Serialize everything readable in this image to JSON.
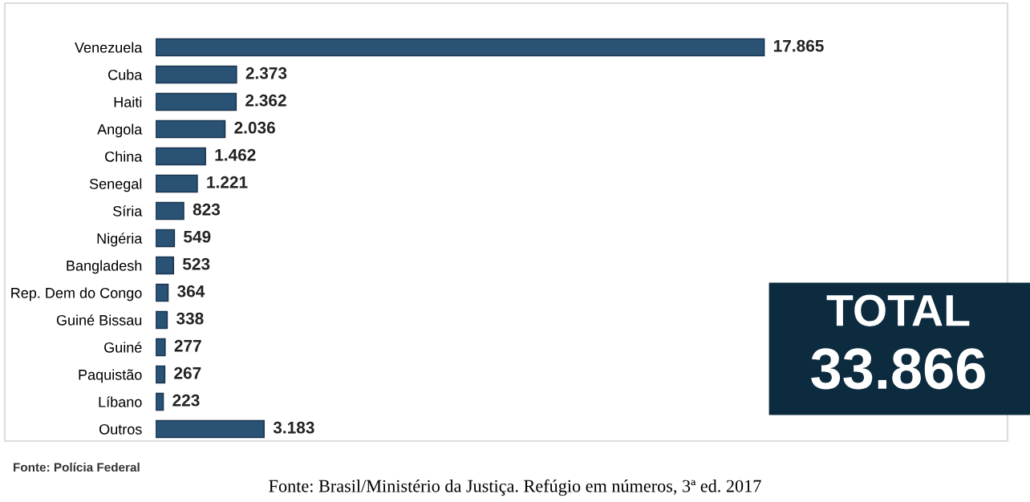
{
  "chart_data": {
    "type": "bar",
    "orientation": "horizontal",
    "categories": [
      "Venezuela",
      "Cuba",
      "Haiti",
      "Angola",
      "China",
      "Senegal",
      "Síria",
      "Nigéria",
      "Bangladesh",
      "Rep. Dem do Congo",
      "Guiné Bissau",
      "Guiné",
      "Paquistão",
      "Líbano",
      "Outros"
    ],
    "values": [
      17865,
      2373,
      2362,
      2036,
      1462,
      1221,
      823,
      549,
      523,
      364,
      338,
      277,
      267,
      223,
      3183
    ],
    "value_labels": [
      "17.865",
      "2.373",
      "2.362",
      "2.036",
      "1.462",
      "1.221",
      "823",
      "549",
      "523",
      "364",
      "338",
      "277",
      "267",
      "223",
      "3.183"
    ],
    "color": "#2a5275",
    "tick_labels": "y",
    "annotations": [
      "TOTAL",
      "33.866",
      "Fonte: Polícia Federal",
      "Fonte: Brasil/Ministério da Justiça. Refúgio em números, 3ª ed. 2017"
    ]
  }
}
